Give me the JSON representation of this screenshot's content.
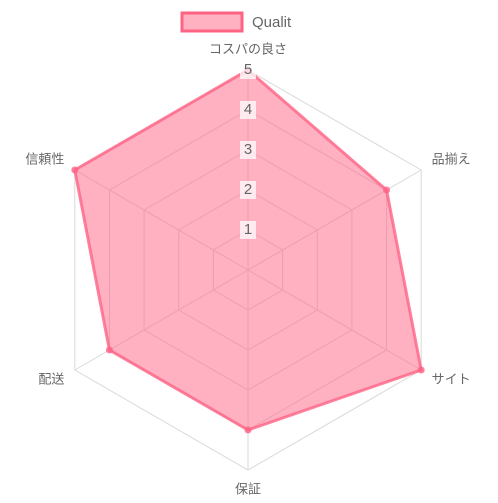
{
  "chart_data": {
    "type": "radar",
    "categories": [
      "コスパの良さ",
      "品揃え",
      "サイト",
      "保証",
      "配送",
      "信頼性"
    ],
    "series": [
      {
        "name": "Qualit",
        "color": "#ff6384",
        "values": [
          5,
          4,
          5,
          4,
          4,
          5
        ]
      }
    ],
    "rlim": [
      0,
      5
    ],
    "rticks": [
      1,
      2,
      3,
      4,
      5
    ],
    "legend": "top"
  }
}
